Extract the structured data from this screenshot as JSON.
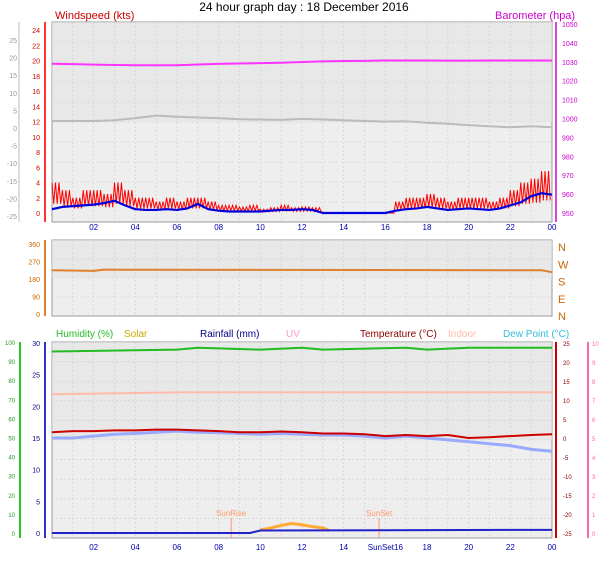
{
  "title": "24 hour graph day : 18 December 2016",
  "colors": {
    "wind_gust": "#ff0000",
    "wind_avg": "#0000dd",
    "barometer": "#ff33ff",
    "temp_gray": "#bbbbbb",
    "direction": "#e08030",
    "humidity": "#22bb22",
    "solar": "#ffaa33",
    "rainfall": "#2222cc",
    "uv": "#ff9999",
    "temperature": "#cc0000",
    "indoor": "#ffbbaa",
    "dewpoint": "#99aaff",
    "sun_marker": "#ff9966"
  },
  "x_ticks": [
    "02",
    "04",
    "06",
    "08",
    "10",
    "12",
    "14",
    "16",
    "18",
    "20",
    "22",
    "00"
  ],
  "chart_data": [
    {
      "type": "line",
      "name": "wind-barometer",
      "left_axis_title": "Windspeed (kts)",
      "right_axis_title": "Barometer (hpa)",
      "x_hours": [
        0,
        24
      ],
      "left_red_ticks": [
        "24",
        "22",
        "20",
        "18",
        "16",
        "14",
        "12",
        "10",
        "8",
        "6",
        "4",
        "2",
        "0"
      ],
      "left_gray_ticks": [
        "25",
        "20",
        "15",
        "10",
        "5",
        "0",
        "-5",
        "-10",
        "-15",
        "-20",
        "-25"
      ],
      "right_ticks": [
        "1050",
        "1040",
        "1030",
        "1020",
        "1010",
        "1000",
        "990",
        "980",
        "970",
        "960",
        "950"
      ],
      "right_ylim": [
        950,
        1050
      ],
      "wind_ylim": [
        0,
        25
      ],
      "barometer": {
        "x": [
          0,
          1,
          2,
          3,
          4,
          5,
          6,
          7,
          8,
          9,
          10,
          11,
          12,
          13,
          14,
          15,
          16,
          17,
          18,
          19,
          20,
          21,
          22,
          23,
          24
        ],
        "y": [
          1029,
          1028.8,
          1028.5,
          1028.3,
          1028.2,
          1028.2,
          1028.2,
          1028.6,
          1028.9,
          1029.1,
          1029.3,
          1029.5,
          1029.9,
          1030.2,
          1030.4,
          1030.5,
          1030.7,
          1030.7,
          1030.7,
          1030.6,
          1030.6,
          1030.7,
          1030.7,
          1030.7,
          1030.7
        ]
      },
      "temp_gray": {
        "x": [
          0,
          1,
          2,
          3,
          4,
          5,
          6,
          7,
          8,
          9,
          10,
          11,
          12,
          13,
          14,
          15,
          16,
          17,
          18,
          19,
          20,
          21,
          22,
          23,
          24
        ],
        "y": [
          2,
          2,
          2,
          2.2,
          2.8,
          3.5,
          3.2,
          3.0,
          2.8,
          2.5,
          2.4,
          2.3,
          2.6,
          2.4,
          2.2,
          2.0,
          1.8,
          1.9,
          1.5,
          1.2,
          0.8,
          0.5,
          0.2,
          0.5,
          0.2
        ]
      },
      "wind_gust": {
        "x": [
          0,
          0.5,
          1,
          1.5,
          2,
          2.5,
          3,
          3.5,
          4,
          4.5,
          5,
          5.5,
          6,
          6.5,
          7,
          7.5,
          8,
          8.5,
          9,
          9.5,
          10,
          10.5,
          11,
          11.5,
          12,
          12.5,
          13,
          13.5,
          14,
          14.5,
          15,
          15.5,
          16,
          16.5,
          17,
          17.5,
          18,
          18.5,
          19,
          19.5,
          20,
          20.5,
          21,
          21.5,
          22,
          22.5,
          23,
          23.5,
          24
        ],
        "y": [
          4,
          3,
          2,
          3,
          3,
          2.5,
          4,
          3,
          2,
          2,
          1.5,
          2,
          1.5,
          2,
          2,
          1.5,
          1,
          1,
          0.8,
          1,
          0.5,
          0.7,
          1,
          0.7,
          0.8,
          0.7,
          0,
          0,
          0,
          0,
          0,
          0,
          0,
          1.5,
          2,
          2,
          2.5,
          2,
          1.5,
          2,
          2,
          2,
          1.5,
          2,
          3,
          4,
          4.5,
          5.5,
          5
        ]
      },
      "wind_avg": {
        "x": [
          0,
          0.5,
          1,
          1.5,
          2,
          2.5,
          3,
          3.5,
          4,
          4.5,
          5,
          5.5,
          6,
          6.5,
          7,
          7.5,
          8,
          8.5,
          9,
          9.5,
          10,
          10.5,
          11,
          11.5,
          12,
          12.5,
          13,
          13.5,
          14,
          14.5,
          15,
          15.5,
          16,
          16.5,
          17,
          17.5,
          18,
          18.5,
          19,
          19.5,
          20,
          20.5,
          21,
          21.5,
          22,
          22.5,
          23,
          23.5,
          24
        ],
        "y": [
          0.5,
          0.8,
          0.9,
          1.0,
          1.1,
          1.3,
          1.6,
          1.0,
          0.5,
          0.4,
          0.4,
          0.5,
          0.4,
          0.6,
          1.2,
          0.5,
          0.3,
          0.2,
          0.2,
          0.2,
          0.2,
          0.3,
          0.4,
          0.4,
          0.5,
          0.4,
          0,
          0,
          0,
          0,
          0,
          0,
          0,
          0.3,
          0.5,
          0.6,
          0.8,
          0.6,
          0.4,
          0.5,
          0.6,
          0.5,
          0.4,
          0.6,
          1.0,
          1.4,
          2.2,
          2.6,
          2.4
        ]
      }
    },
    {
      "type": "line",
      "name": "wind-direction",
      "left_ticks": [
        "360",
        "270",
        "180",
        "90",
        "0"
      ],
      "right_labels": [
        "N",
        "W",
        "S",
        "E",
        "N"
      ],
      "ylim": [
        0,
        360
      ],
      "direction": {
        "x": [
          0,
          2,
          2.5,
          23.5,
          24
        ],
        "y": [
          225,
          222,
          228,
          225,
          215
        ]
      }
    },
    {
      "type": "line",
      "name": "humidity-temperature",
      "legend": [
        {
          "label": "Humidity (%)",
          "color": "#22bb22"
        },
        {
          "label": "Solar",
          "color": "#ccaa00"
        },
        {
          "label": "Rainfall (mm)",
          "color": "#000088"
        },
        {
          "label": "UV",
          "color": "#ff99cc"
        },
        {
          "label": "Temperature (°C)",
          "color": "#880000"
        },
        {
          "label": "Indoor",
          "color": "#ffbbaa"
        },
        {
          "label": "Dew Point (°C)",
          "color": "#33bbdd"
        }
      ],
      "green_ticks": [
        "100",
        "90",
        "80",
        "70",
        "60",
        "50",
        "40",
        "30",
        "20",
        "10",
        "0"
      ],
      "blue_ticks": [
        "30",
        "25",
        "20",
        "15",
        "10",
        "5",
        "0"
      ],
      "right_inner_ticks": [
        "25",
        "20",
        "15",
        "10",
        "5",
        "0",
        "-5",
        "-10",
        "-15",
        "-20",
        "-25"
      ],
      "right_outer_ticks": [
        "10",
        "9",
        "8",
        "7",
        "6",
        "5",
        "4",
        "3",
        "2",
        "1",
        "0"
      ],
      "humidity_ylim": [
        0,
        100
      ],
      "temp_ylim": [
        -25,
        25
      ],
      "humidity": {
        "x": [
          0,
          6,
          7,
          10,
          12,
          13,
          17,
          18,
          20,
          24
        ],
        "y": [
          95,
          96,
          97,
          96,
          97,
          96,
          97,
          96,
          97,
          97
        ]
      },
      "indoor": {
        "x": [
          0,
          6,
          14,
          18,
          24
        ],
        "y": [
          11.5,
          12,
          12,
          12,
          12
        ]
      },
      "temperature": {
        "x": [
          0,
          1,
          2,
          3,
          4,
          5,
          6,
          7,
          8,
          9,
          10,
          11,
          12,
          13,
          14,
          15,
          16,
          17,
          18,
          19,
          20,
          21,
          22,
          23,
          24
        ],
        "y": [
          1.5,
          1.8,
          1.8,
          2,
          2,
          2.2,
          2.2,
          2,
          1.8,
          1.5,
          1.5,
          1.7,
          1.5,
          1.2,
          1.2,
          1.0,
          0.5,
          0.8,
          0.5,
          0.8,
          0,
          0.2,
          0.5,
          0.8,
          1
        ]
      },
      "dewpoint": {
        "x": [
          0,
          1,
          2,
          3,
          4,
          5,
          6,
          7,
          8,
          9,
          10,
          11,
          12,
          13,
          14,
          15,
          16,
          17,
          18,
          19,
          20,
          21,
          22,
          23,
          24
        ],
        "y": [
          0,
          0,
          0.5,
          1,
          1.2,
          1.5,
          1.8,
          1.5,
          1.4,
          1.2,
          1.0,
          1.2,
          1.0,
          0.8,
          0.8,
          0.5,
          0,
          0.5,
          0,
          -0.5,
          -1,
          -1.5,
          -2,
          -3,
          -3.5
        ]
      },
      "solar": {
        "x": [
          10,
          10.5,
          11,
          11.5,
          12,
          12.5,
          13,
          13.3
        ],
        "y": [
          0.5,
          0.8,
          1.2,
          1.5,
          1.3,
          1.0,
          0.8,
          0.4
        ]
      },
      "rainfall": {
        "x": [
          0,
          9.5,
          10,
          23.5,
          24
        ],
        "y": [
          0,
          0,
          0.4,
          0.5,
          0.5
        ]
      },
      "sun_labels": {
        "sunrise": "SunRise",
        "sunset": "SunSet",
        "sunrise_hour": 8.6,
        "sunset_hour": 15.7
      },
      "bottom_ticks": [
        "02",
        "04",
        "06",
        "08",
        "10",
        "12",
        "14",
        "SunSet16",
        "18",
        "20",
        "22",
        "00"
      ]
    }
  ]
}
